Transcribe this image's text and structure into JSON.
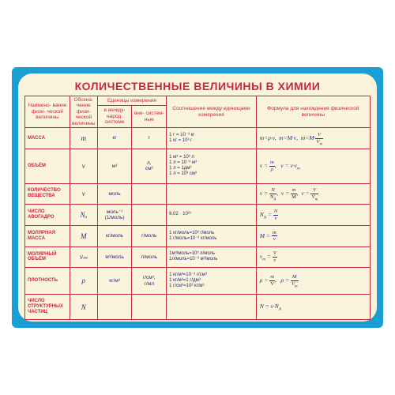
{
  "title": "КОЛИЧЕСТВЕННЫЕ ВЕЛИЧИНЫ В ХИМИИ",
  "colors": {
    "border": "#1a9fd4",
    "paper": "#faf4dc",
    "accent": "#c8293a",
    "text": "#2a2a7a"
  },
  "headers": {
    "h1": "Наимено-\nвание физи-\nческой\nвеличины",
    "h2": "Обозна-\nчение физи-\nческой\nвеличины",
    "h3": "Единицы\nизмерения",
    "h3a": "в между-\nнарод.\nсистеме",
    "h3b": "вне-\nсистем-\nные",
    "h4": "Соотношение\nмежду\nединицами\nизмерения",
    "h5": "Формула\nдля нахождения\nфизической\nвеличины"
  },
  "rows": [
    {
      "name": "МАССА",
      "sym": "m",
      "si": "кг",
      "ext": "г",
      "rel": "1 г = 10⁻³ кг\n1 кг = 10³ г",
      "formula": "m=ρ·v,  m=M·ν,  m=M·V/Vₘ"
    },
    {
      "name": "ОБЪЁМ",
      "sym": "v",
      "si": "м³",
      "ext": "л,\nсм³",
      "rel": "1 м³ = 10³ л\n1 л = 10⁻³ м³\n1 л = 1дм³\n1 л = 10³ см³",
      "formula": "v = m/ρ,   v = ν·vₘ"
    },
    {
      "name": "КОЛИЧЕСТВО\nВЕЩЕСТВА",
      "sym": "ν",
      "si": "моль",
      "ext": "",
      "rel": "",
      "formula": "ν = N/Nₐ,  ν = m/M,  ν = V/Vₘ"
    },
    {
      "name": "ЧИСЛО\nАВОГАДРО",
      "sym": "Nₐ",
      "si": "моль⁻¹\n(1/моль)",
      "ext": "",
      "rel": "6,02 · 10²³",
      "formula": "Nₐ = N/ν"
    },
    {
      "name": "МОЛЯРНАЯ\nМАССА",
      "sym": "M",
      "si": "кг/моль",
      "ext": "г/моль",
      "rel": "1 кг/моль=10³ г/моль\n1 г/моль=10⁻³ кг/моль",
      "formula": "M = m/ν"
    },
    {
      "name": "МОЛЯРНЫЙ\nОБЪЁМ",
      "sym": "vₘ",
      "si": "м³/моль",
      "ext": "л/моль",
      "rel": "1м³/моль=10³ л/моль\n1л/моль=10⁻³ м³/моль",
      "formula": "vₘ = V/ν"
    },
    {
      "name": "ПЛОТНОСТЬ",
      "sym": "ρ",
      "si": "кг/м³",
      "ext": "г/см³,\nг/мл",
      "rel": "1 кг/м³=10⁻³ г/см³\n1 кг/м³=1 г/дм³\n1 г/см³=10³ кг/м³",
      "formula": "ρ = m/V,   ρ = M/Vₘ"
    },
    {
      "name": "ЧИСЛО\nСТРУКТУРНЫХ\nЧАСТИЦ",
      "sym": "N",
      "si": "",
      "ext": "",
      "rel": "",
      "formula": "N = ν·Nₐ"
    }
  ]
}
